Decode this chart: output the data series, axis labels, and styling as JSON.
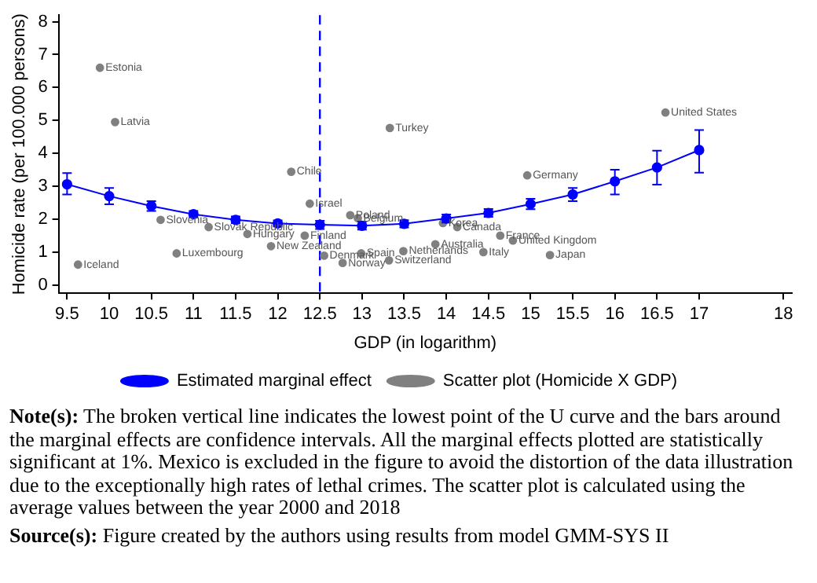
{
  "chart_data": {
    "type": "line",
    "xlabel": "GDP (in logarithm)",
    "ylabel": "Homicide rate (per 100.000 persons)",
    "xlim": [
      9.4,
      18.1
    ],
    "xticks": [
      9.5,
      10,
      10.5,
      11,
      11.5,
      12,
      12.5,
      13,
      13.5,
      14,
      14.5,
      15,
      15.5,
      16,
      16.5,
      17,
      18
    ],
    "ylim": [
      -0.25,
      8.2
    ],
    "yticks": [
      0,
      1,
      2,
      3,
      4,
      5,
      6,
      7,
      8
    ],
    "grid": false,
    "legend": "bottom",
    "marker": "circle",
    "series": [
      {
        "name": "Scatter plot (Homicide X GDP)",
        "type": "scatter",
        "color": "#808080",
        "x": [
          9.89,
          10.07,
          9.63,
          10.8,
          10.61,
          11.18,
          11.64,
          11.92,
          12.16,
          12.38,
          12.32,
          12.55,
          12.77,
          12.86,
          12.95,
          12.99,
          13.49,
          13.32,
          13.96,
          14.13,
          13.87,
          14.44,
          14.64,
          14.79,
          15.23,
          14.96,
          13.33,
          16.6
        ],
        "values": [
          6.6,
          4.95,
          0.62,
          0.96,
          1.98,
          1.76,
          1.55,
          1.18,
          3.44,
          2.47,
          1.5,
          0.89,
          0.67,
          2.12,
          2.03,
          0.96,
          1.03,
          0.75,
          1.88,
          1.76,
          1.24,
          1.0,
          1.5,
          1.35,
          0.91,
          3.33,
          4.77,
          5.24
        ]
      },
      {
        "name": "Estimated marginal effect",
        "color": "#0000ff",
        "line_style": "solid",
        "x": [
          9.5,
          10,
          10.5,
          11,
          11.5,
          12,
          12.5,
          13,
          13.5,
          14,
          14.5,
          15,
          15.5,
          16,
          16.5,
          17
        ],
        "values": [
          3.06,
          2.7,
          2.4,
          2.15,
          1.98,
          1.87,
          1.83,
          1.8,
          1.86,
          2.02,
          2.19,
          2.46,
          2.75,
          3.15,
          3.57,
          4.1
        ],
        "errors": [
          [
            2.75,
            3.4
          ],
          [
            2.45,
            2.95
          ],
          [
            2.25,
            2.55
          ],
          [
            2.05,
            2.25
          ],
          [
            1.88,
            2.08
          ],
          [
            1.78,
            1.96
          ],
          [
            1.7,
            1.95
          ],
          [
            1.68,
            1.92
          ],
          [
            1.75,
            1.97
          ],
          [
            1.9,
            2.14
          ],
          [
            2.07,
            2.31
          ],
          [
            2.3,
            2.62
          ],
          [
            2.55,
            2.95
          ],
          [
            2.75,
            3.5
          ],
          [
            3.05,
            4.08
          ],
          [
            3.41,
            4.71
          ]
        ]
      }
    ],
    "ref_lines": [
      {
        "axis": "x",
        "value": 12.5,
        "color": "#0000ff",
        "line_style": "dashed"
      }
    ],
    "annotations": [
      {
        "text": "Estonia",
        "x": 9.89,
        "y": 6.6
      },
      {
        "text": "Latvia",
        "x": 10.07,
        "y": 4.95
      },
      {
        "text": "Iceland",
        "x": 9.63,
        "y": 0.62
      },
      {
        "text": "Luxembourg",
        "x": 10.8,
        "y": 0.96
      },
      {
        "text": "Slovenia",
        "x": 10.61,
        "y": 1.98
      },
      {
        "text": "Slovak Republic",
        "x": 11.18,
        "y": 1.76
      },
      {
        "text": "Hungary",
        "x": 11.64,
        "y": 1.55
      },
      {
        "text": "New Zealand",
        "x": 11.92,
        "y": 1.18
      },
      {
        "text": "Chile",
        "x": 12.16,
        "y": 3.44
      },
      {
        "text": "Israel",
        "x": 12.38,
        "y": 2.47
      },
      {
        "text": "Finland",
        "x": 12.32,
        "y": 1.5
      },
      {
        "text": "Denmark",
        "x": 12.55,
        "y": 0.89
      },
      {
        "text": "Norway",
        "x": 12.77,
        "y": 0.67
      },
      {
        "text": "Poland",
        "x": 12.86,
        "y": 2.12
      },
      {
        "text": "Belgium",
        "x": 12.95,
        "y": 2.03
      },
      {
        "text": "Spain",
        "x": 12.99,
        "y": 0.96
      },
      {
        "text": "Netherlands",
        "x": 13.49,
        "y": 1.03
      },
      {
        "text": "Switzerland",
        "x": 13.32,
        "y": 0.75
      },
      {
        "text": "Korea",
        "x": 13.96,
        "y": 1.88
      },
      {
        "text": "Canada",
        "x": 14.13,
        "y": 1.76
      },
      {
        "text": "Australia",
        "x": 13.87,
        "y": 1.24
      },
      {
        "text": "Italy",
        "x": 14.44,
        "y": 1.0
      },
      {
        "text": "France",
        "x": 14.64,
        "y": 1.5
      },
      {
        "text": "United Kingdom",
        "x": 14.79,
        "y": 1.35
      },
      {
        "text": "Japan",
        "x": 15.23,
        "y": 0.91
      },
      {
        "text": "Germany",
        "x": 14.96,
        "y": 3.33
      },
      {
        "text": "Turkey",
        "x": 13.33,
        "y": 4.77
      },
      {
        "text": "United States",
        "x": 16.6,
        "y": 5.24
      },
      "Note(s): The broken vertical line indicates the lowest point of the U curve and the bars around the marginal effects are confidence intervals. All the marginal effects plotted are statistically significant at 1%. Mexico is excluded in the figure to avoid the distortion of the data illustration due to the exceptionally high rates of lethal crimes. The scatter plot is calculated using the average values between the year 2000 and 2018",
      "Source(s): Figure created by the authors using results from model GMM-SYS II"
    ]
  }
}
